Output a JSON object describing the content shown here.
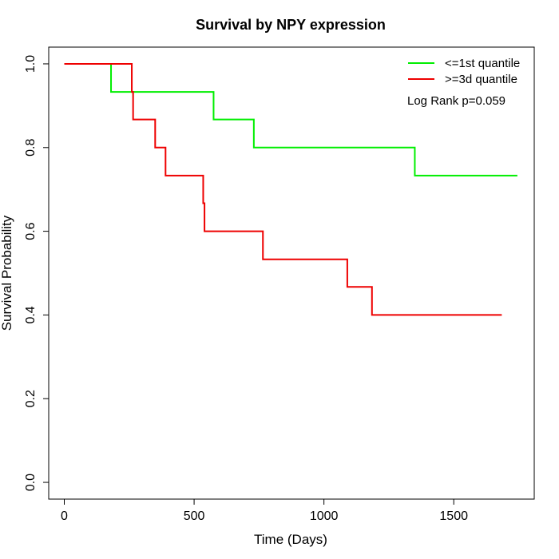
{
  "chart_data": {
    "type": "line",
    "title": "Survival by NPY expression",
    "xlabel": "Time (Days)",
    "ylabel": "Survival Probability",
    "xlim": [
      -60,
      1810
    ],
    "ylim": [
      -0.04,
      1.04
    ],
    "x_ticks": [
      0,
      500,
      1000,
      1500
    ],
    "y_ticks": [
      0.0,
      0.2,
      0.4,
      0.6,
      0.8,
      1.0
    ],
    "x_tick_labels": [
      "0",
      "500",
      "1000",
      "1500"
    ],
    "y_tick_labels": [
      "0.0",
      "0.2",
      "0.4",
      "0.6",
      "0.8",
      "1.0"
    ],
    "grid": false,
    "legend_position": "top-right",
    "annotation": "Log Rank p=0.059",
    "series": [
      {
        "name": "<=1st quantile",
        "color": "#00ee00",
        "step": true,
        "x": [
          0,
          180,
          575,
          730,
          1350,
          1745
        ],
        "y": [
          1.0,
          0.933,
          0.867,
          0.8,
          0.733,
          0.733
        ]
      },
      {
        "name": ">=3d quantile",
        "color": "#ee0000",
        "step": true,
        "x": [
          0,
          260,
          265,
          350,
          390,
          535,
          540,
          765,
          1090,
          1185,
          1685
        ],
        "y": [
          1.0,
          0.933,
          0.867,
          0.8,
          0.733,
          0.667,
          0.6,
          0.533,
          0.467,
          0.4,
          0.4
        ]
      }
    ]
  }
}
